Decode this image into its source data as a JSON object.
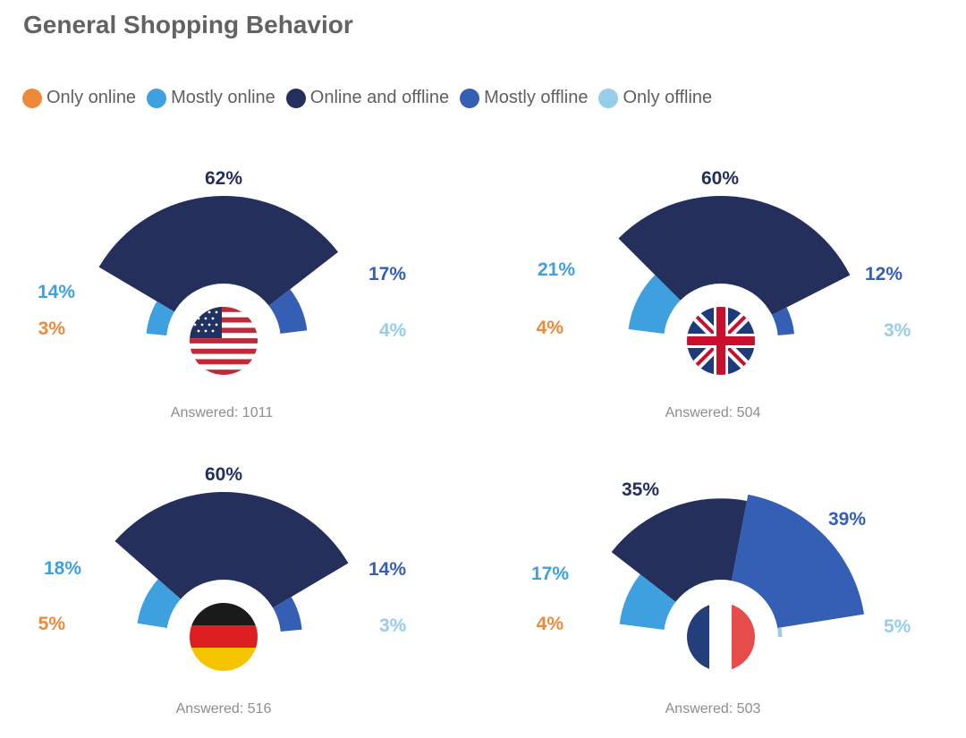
{
  "title": "General Shopping Behavior",
  "colors": {
    "only_online": "#ed8a3a",
    "mostly_online": "#3fa0df",
    "online_and_offline": "#242f5c",
    "mostly_offline": "#355eb5",
    "only_offline": "#95cdea"
  },
  "chart_data": {
    "type": "pie",
    "variant": "semicircle-polar",
    "legend": [
      {
        "name": "Only online",
        "color": "#ed8a3a"
      },
      {
        "name": "Mostly online",
        "color": "#3fa0df"
      },
      {
        "name": "Online and offline",
        "color": "#242f5c"
      },
      {
        "name": "Mostly offline",
        "color": "#355eb5"
      },
      {
        "name": "Only offline",
        "color": "#95cdea"
      }
    ],
    "categories": [
      "Only online",
      "Mostly online",
      "Online and offline",
      "Mostly offline",
      "Only offline"
    ],
    "charts": [
      {
        "flag": "us-flag",
        "values": [
          3,
          14,
          62,
          17,
          4
        ],
        "labels": [
          "3%",
          "14%",
          "62%",
          "17%",
          "4%"
        ],
        "answered": "Answered: 1011"
      },
      {
        "flag": "uk-flag",
        "values": [
          4,
          21,
          60,
          12,
          3
        ],
        "labels": [
          "4%",
          "21%",
          "60%",
          "12%",
          "3%"
        ],
        "answered": "Answered: 504"
      },
      {
        "flag": "germany-flag",
        "values": [
          5,
          18,
          60,
          14,
          3
        ],
        "labels": [
          "5%",
          "18%",
          "60%",
          "14%",
          "3%"
        ],
        "answered": "Answered: 516"
      },
      {
        "flag": "france-flag",
        "values": [
          4,
          17,
          35,
          39,
          5
        ],
        "labels": [
          "4%",
          "17%",
          "35%",
          "39%",
          "5%"
        ],
        "answered": "Answered: 503"
      }
    ]
  }
}
